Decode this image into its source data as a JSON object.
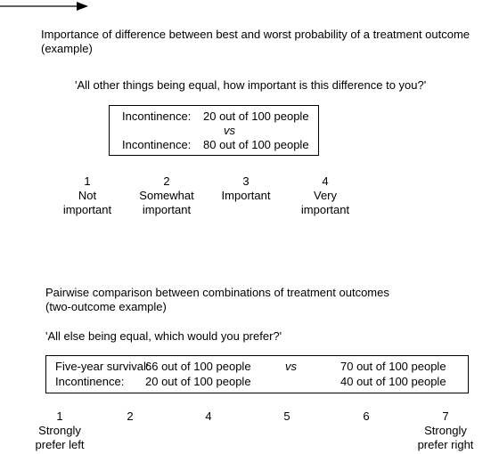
{
  "section1": {
    "title_line1": "Importance of difference between best and worst probability of a treatment outcome",
    "title_line2": "(example)",
    "question": "'All other things being equal, how important is this difference to you?'",
    "box": {
      "row1_label": "Incontinence:",
      "row1_value": "20 out of 100 people",
      "vs": "vs",
      "row2_label": "Incontinence:",
      "row2_value": "80 out of 100 people"
    },
    "scale": [
      {
        "num": "1",
        "line1": "Not",
        "line2": "important"
      },
      {
        "num": "2",
        "line1": "Somewhat",
        "line2": "important"
      },
      {
        "num": "3",
        "line1": "Important",
        "line2": ""
      },
      {
        "num": "4",
        "line1": "Very",
        "line2": "important"
      }
    ]
  },
  "section2": {
    "title_line1": "Pairwise comparison between combinations of treatment outcomes",
    "title_line2": "(two-outcome example)",
    "question": "'All else being equal, which would you prefer?'",
    "box": {
      "row1_label": "Five-year survival:",
      "row1_left": "66 out of 100 people",
      "vs": "vs",
      "row1_right": "70 out of 100 people",
      "row2_label": "Incontinence:",
      "row2_left": "20 out of 100 people",
      "row2_right": "40 out of 100 people"
    },
    "scale": [
      {
        "num": "1",
        "line1": "Strongly",
        "line2": "prefer left"
      },
      {
        "num": "2",
        "line1": "",
        "line2": ""
      },
      {
        "num": "4",
        "line1": "",
        "line2": ""
      },
      {
        "num": "5",
        "line1": "",
        "line2": ""
      },
      {
        "num": "6",
        "line1": "",
        "line2": ""
      },
      {
        "num": "7",
        "line1": "Strongly",
        "line2": "prefer right"
      }
    ]
  }
}
